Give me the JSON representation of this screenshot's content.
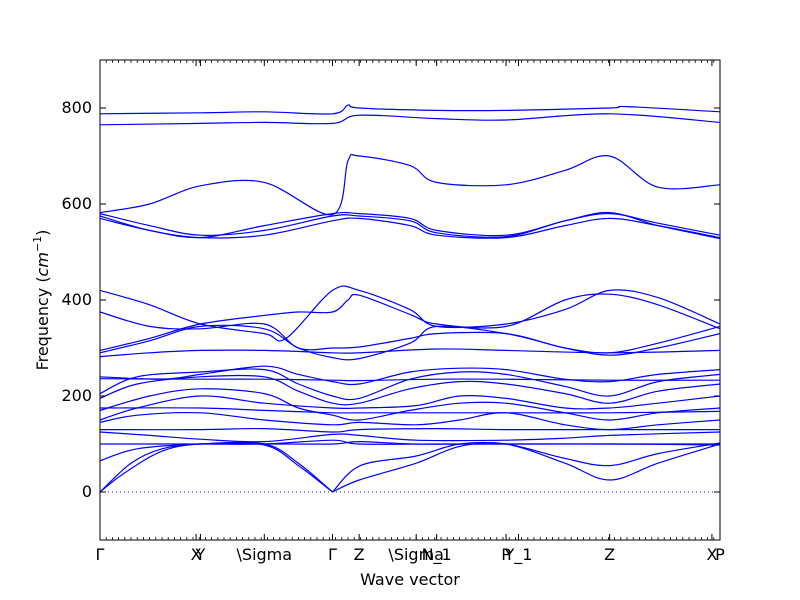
{
  "chart_data": {
    "type": "line",
    "xlabel": "Wave vector",
    "ylabel": "Frequency",
    "ylabel_unit": "cm",
    "ylabel_unit_exp": "−1",
    "ylim": [
      -100,
      900
    ],
    "xlim": [
      0,
      1
    ],
    "yticks": [
      0,
      200,
      400,
      600,
      800
    ],
    "xticks": [
      {
        "pos": 0.0,
        "label": "Γ"
      },
      {
        "pos": 0.155,
        "label": "X"
      },
      {
        "pos": 0.162,
        "label": "Y"
      },
      {
        "pos": 0.265,
        "label": "\\Sigma"
      },
      {
        "pos": 0.375,
        "label": "Γ"
      },
      {
        "pos": 0.418,
        "label": "Z"
      },
      {
        "pos": 0.51,
        "label": "\\Sigma"
      },
      {
        "pos": 0.543,
        "label": "N_1"
      },
      {
        "pos": 0.655,
        "label": "P"
      },
      {
        "pos": 0.675,
        "label": "Y_1"
      },
      {
        "pos": 0.822,
        "label": "Z"
      },
      {
        "pos": 0.987,
        "label": "X"
      },
      {
        "pos": 1.0,
        "label": "P"
      }
    ],
    "series_color": "#0000ff",
    "zero_line": 0,
    "bands": [
      [
        [
          0,
          0
        ],
        [
          0.05,
          60
        ],
        [
          0.1,
          90
        ],
        [
          0.162,
          100
        ],
        [
          0.265,
          100
        ],
        [
          0.32,
          60
        ],
        [
          0.375,
          0
        ]
      ],
      [
        [
          0,
          0
        ],
        [
          0.04,
          40
        ],
        [
          0.1,
          85
        ],
        [
          0.162,
          100
        ],
        [
          0.265,
          98
        ],
        [
          0.32,
          55
        ],
        [
          0.375,
          0
        ]
      ],
      [
        [
          0,
          65
        ],
        [
          0.06,
          90
        ],
        [
          0.162,
          100
        ],
        [
          0.265,
          100
        ],
        [
          0.375,
          100
        ],
        [
          0.418,
          105
        ],
        [
          0.51,
          100
        ],
        [
          0.655,
          100
        ],
        [
          0.75,
          100
        ],
        [
          0.822,
          100
        ],
        [
          1,
          100
        ]
      ],
      [
        [
          0,
          100
        ],
        [
          0.162,
          100
        ],
        [
          0.265,
          100
        ],
        [
          0.375,
          108
        ],
        [
          0.418,
          100
        ],
        [
          0.543,
          100
        ],
        [
          0.655,
          100
        ],
        [
          0.822,
          100
        ],
        [
          1,
          98
        ]
      ],
      [
        [
          0.375,
          0
        ],
        [
          0.418,
          25
        ],
        [
          0.51,
          60
        ],
        [
          0.58,
          95
        ],
        [
          0.655,
          100
        ],
        [
          0.75,
          60
        ],
        [
          0.822,
          25
        ],
        [
          0.9,
          60
        ],
        [
          1,
          100
        ]
      ],
      [
        [
          0.375,
          0
        ],
        [
          0.42,
          55
        ],
        [
          0.51,
          75
        ],
        [
          0.58,
          100
        ],
        [
          0.655,
          100
        ],
        [
          0.75,
          70
        ],
        [
          0.822,
          55
        ],
        [
          0.9,
          80
        ],
        [
          1,
          102
        ]
      ],
      [
        [
          0,
          125
        ],
        [
          0.08,
          118
        ],
        [
          0.162,
          110
        ],
        [
          0.265,
          105
        ],
        [
          0.375,
          120
        ],
        [
          0.418,
          118
        ],
        [
          0.51,
          108
        ],
        [
          0.655,
          108
        ],
        [
          0.75,
          112
        ],
        [
          0.822,
          118
        ],
        [
          1,
          125
        ]
      ],
      [
        [
          0,
          130
        ],
        [
          0.162,
          130
        ],
        [
          0.265,
          132
        ],
        [
          0.375,
          125
        ],
        [
          0.418,
          130
        ],
        [
          0.543,
          132
        ],
        [
          0.655,
          130
        ],
        [
          0.822,
          130
        ],
        [
          1,
          130
        ]
      ],
      [
        [
          0,
          145
        ],
        [
          0.06,
          160
        ],
        [
          0.162,
          165
        ],
        [
          0.265,
          150
        ],
        [
          0.375,
          140
        ],
        [
          0.418,
          145
        ],
        [
          0.51,
          140
        ],
        [
          0.58,
          150
        ],
        [
          0.655,
          165
        ],
        [
          0.75,
          140
        ],
        [
          0.822,
          130
        ],
        [
          0.9,
          140
        ],
        [
          1,
          150
        ]
      ],
      [
        [
          0,
          150
        ],
        [
          0.06,
          175
        ],
        [
          0.162,
          200
        ],
        [
          0.265,
          185
        ],
        [
          0.375,
          175
        ],
        [
          0.418,
          175
        ],
        [
          0.51,
          180
        ],
        [
          0.58,
          200
        ],
        [
          0.655,
          195
        ],
        [
          0.75,
          175
        ],
        [
          0.822,
          175
        ],
        [
          0.9,
          185
        ],
        [
          1,
          200
        ]
      ],
      [
        [
          0,
          170
        ],
        [
          0.08,
          200
        ],
        [
          0.162,
          215
        ],
        [
          0.265,
          205
        ],
        [
          0.32,
          175
        ],
        [
          0.375,
          160
        ],
        [
          0.418,
          150
        ],
        [
          0.5,
          170
        ],
        [
          0.58,
          185
        ],
        [
          0.655,
          185
        ],
        [
          0.75,
          165
        ],
        [
          0.822,
          150
        ],
        [
          0.9,
          165
        ],
        [
          1,
          175
        ]
      ],
      [
        [
          0,
          175
        ],
        [
          0.162,
          175
        ],
        [
          0.265,
          170
        ],
        [
          0.375,
          165
        ],
        [
          0.418,
          165
        ],
        [
          0.543,
          165
        ],
        [
          0.655,
          165
        ],
        [
          0.822,
          165
        ],
        [
          1,
          168
        ]
      ],
      [
        [
          0,
          195
        ],
        [
          0.06,
          225
        ],
        [
          0.162,
          240
        ],
        [
          0.265,
          240
        ],
        [
          0.32,
          210
        ],
        [
          0.375,
          185
        ],
        [
          0.418,
          185
        ],
        [
          0.5,
          215
        ],
        [
          0.58,
          230
        ],
        [
          0.655,
          225
        ],
        [
          0.75,
          205
        ],
        [
          0.822,
          185
        ],
        [
          0.9,
          210
        ],
        [
          1,
          225
        ]
      ],
      [
        [
          0,
          205
        ],
        [
          0.06,
          240
        ],
        [
          0.162,
          250
        ],
        [
          0.265,
          255
        ],
        [
          0.32,
          225
        ],
        [
          0.375,
          200
        ],
        [
          0.418,
          195
        ],
        [
          0.5,
          235
        ],
        [
          0.58,
          250
        ],
        [
          0.655,
          245
        ],
        [
          0.75,
          220
        ],
        [
          0.822,
          200
        ],
        [
          0.9,
          230
        ],
        [
          1,
          245
        ]
      ],
      [
        [
          0,
          240
        ],
        [
          0.1,
          235
        ],
        [
          0.162,
          245
        ],
        [
          0.265,
          262
        ],
        [
          0.32,
          245
        ],
        [
          0.375,
          230
        ],
        [
          0.418,
          225
        ],
        [
          0.5,
          250
        ],
        [
          0.58,
          258
        ],
        [
          0.655,
          255
        ],
        [
          0.75,
          235
        ],
        [
          0.822,
          230
        ],
        [
          0.9,
          245
        ],
        [
          1,
          255
        ]
      ],
      [
        [
          0,
          236
        ],
        [
          0.162,
          235
        ],
        [
          0.265,
          235
        ],
        [
          0.375,
          233
        ],
        [
          0.418,
          232
        ],
        [
          0.543,
          235
        ],
        [
          0.655,
          235
        ],
        [
          0.822,
          233
        ],
        [
          1,
          233
        ]
      ],
      [
        [
          0,
          282
        ],
        [
          0.08,
          290
        ],
        [
          0.162,
          295
        ],
        [
          0.265,
          295
        ],
        [
          0.375,
          290
        ],
        [
          0.418,
          290
        ],
        [
          0.543,
          298
        ],
        [
          0.655,
          295
        ],
        [
          0.822,
          290
        ],
        [
          1,
          295
        ]
      ],
      [
        [
          0,
          290
        ],
        [
          0.08,
          315
        ],
        [
          0.162,
          345
        ],
        [
          0.265,
          340
        ],
        [
          0.32,
          300
        ],
        [
          0.375,
          280
        ],
        [
          0.418,
          278
        ],
        [
          0.5,
          310
        ],
        [
          0.543,
          345
        ],
        [
          0.655,
          330
        ],
        [
          0.75,
          300
        ],
        [
          0.822,
          285
        ],
        [
          0.9,
          300
        ],
        [
          1,
          330
        ]
      ],
      [
        [
          0,
          295
        ],
        [
          0.08,
          320
        ],
        [
          0.162,
          350
        ],
        [
          0.265,
          368
        ],
        [
          0.32,
          375
        ],
        [
          0.375,
          375
        ],
        [
          0.4,
          400
        ],
        [
          0.418,
          410
        ],
        [
          0.5,
          370
        ],
        [
          0.543,
          350
        ],
        [
          0.655,
          345
        ],
        [
          0.75,
          400
        ],
        [
          0.822,
          412
        ],
        [
          0.9,
          390
        ],
        [
          1,
          340
        ]
      ],
      [
        [
          0,
          375
        ],
        [
          0.08,
          345
        ],
        [
          0.162,
          340
        ],
        [
          0.265,
          350
        ],
        [
          0.32,
          300
        ],
        [
          0.375,
          300
        ],
        [
          0.418,
          302
        ],
        [
          0.5,
          320
        ],
        [
          0.543,
          330
        ],
        [
          0.655,
          330
        ],
        [
          0.75,
          300
        ],
        [
          0.822,
          290
        ],
        [
          0.9,
          310
        ],
        [
          1,
          345
        ]
      ],
      [
        [
          0,
          420
        ],
        [
          0.08,
          390
        ],
        [
          0.162,
          350
        ],
        [
          0.265,
          330
        ],
        [
          0.3,
          320
        ],
        [
          0.375,
          420
        ],
        [
          0.418,
          420
        ],
        [
          0.5,
          380
        ],
        [
          0.543,
          345
        ],
        [
          0.655,
          350
        ],
        [
          0.75,
          380
        ],
        [
          0.822,
          420
        ],
        [
          0.9,
          405
        ],
        [
          1,
          350
        ]
      ],
      [
        [
          0,
          575
        ],
        [
          0.08,
          545
        ],
        [
          0.162,
          530
        ],
        [
          0.265,
          535
        ],
        [
          0.375,
          565
        ],
        [
          0.418,
          570
        ],
        [
          0.5,
          555
        ],
        [
          0.543,
          535
        ],
        [
          0.655,
          530
        ],
        [
          0.75,
          555
        ],
        [
          0.822,
          570
        ],
        [
          0.9,
          555
        ],
        [
          1,
          530
        ]
      ],
      [
        [
          0,
          580
        ],
        [
          0.08,
          555
        ],
        [
          0.162,
          535
        ],
        [
          0.265,
          545
        ],
        [
          0.375,
          575
        ],
        [
          0.418,
          575
        ],
        [
          0.5,
          565
        ],
        [
          0.543,
          540
        ],
        [
          0.655,
          532
        ],
        [
          0.75,
          565
        ],
        [
          0.822,
          580
        ],
        [
          0.9,
          560
        ],
        [
          1,
          535
        ]
      ],
      [
        [
          0,
          570
        ],
        [
          0.08,
          545
        ],
        [
          0.162,
          530
        ],
        [
          0.265,
          555
        ],
        [
          0.375,
          580
        ],
        [
          0.418,
          580
        ],
        [
          0.5,
          570
        ],
        [
          0.543,
          545
        ],
        [
          0.655,
          535
        ],
        [
          0.75,
          565
        ],
        [
          0.822,
          582
        ],
        [
          0.9,
          555
        ],
        [
          1,
          528
        ]
      ],
      [
        [
          0,
          582
        ],
        [
          0.08,
          600
        ],
        [
          0.162,
          638
        ],
        [
          0.265,
          645
        ],
        [
          0.375,
          578
        ],
        [
          0.4,
          690
        ],
        [
          0.418,
          700
        ],
        [
          0.5,
          680
        ],
        [
          0.543,
          645
        ],
        [
          0.655,
          640
        ],
        [
          0.75,
          670
        ],
        [
          0.822,
          700
        ],
        [
          0.9,
          635
        ],
        [
          1,
          640
        ]
      ],
      [
        [
          0,
          765
        ],
        [
          0.162,
          768
        ],
        [
          0.265,
          770
        ],
        [
          0.375,
          768
        ],
        [
          0.418,
          785
        ],
        [
          0.543,
          778
        ],
        [
          0.655,
          775
        ],
        [
          0.822,
          788
        ],
        [
          1,
          770
        ]
      ],
      [
        [
          0,
          788
        ],
        [
          0.162,
          790
        ],
        [
          0.265,
          792
        ],
        [
          0.375,
          788
        ],
        [
          0.4,
          806
        ],
        [
          0.418,
          800
        ],
        [
          0.543,
          795
        ],
        [
          0.655,
          795
        ],
        [
          0.822,
          800
        ],
        [
          0.85,
          803
        ],
        [
          1,
          792
        ]
      ]
    ]
  }
}
